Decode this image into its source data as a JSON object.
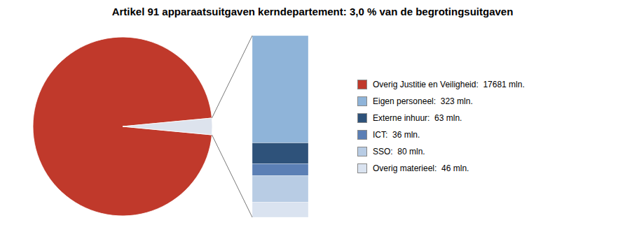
{
  "chart_data": [
    {
      "type": "pie",
      "title": "Artikel 91 apparaatsuitgaven kerndepartement: 3,0 % van de begrotingsuitgaven",
      "categories": [
        "Overig Justitie en Veiligheid:  17681 mln.",
        null
      ],
      "values": [
        97.0,
        3.0
      ],
      "colors": [
        "#c0392b",
        "#dde3ed"
      ],
      "legend": "right"
    },
    {
      "type": "bar",
      "stacked": true,
      "tick_labels": false,
      "series": [
        {
          "name": "Eigen personeel:  323 mln.",
          "color": "#8fb4d9",
          "values": [
            323
          ]
        },
        {
          "name": "Externe inhuur:  63 mln.",
          "color": "#2e527a",
          "values": [
            63
          ]
        },
        {
          "name": "ICT:  36 mln.",
          "color": "#5b7fb5",
          "values": [
            36
          ]
        },
        {
          "name": "SSO:  80 mln.",
          "color": "#b8cce4",
          "values": [
            80
          ]
        },
        {
          "name": "Overig materieel:  46 mln.",
          "color": "#dae3f0",
          "values": [
            46
          ]
        }
      ]
    }
  ]
}
